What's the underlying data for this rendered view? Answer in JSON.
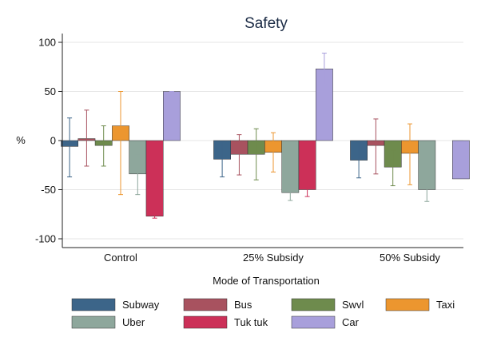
{
  "chart_data": {
    "type": "bar",
    "title": "Safety",
    "xlabel": "Mode of Transportation",
    "ylabel": "%",
    "ylim": [
      -110,
      105
    ],
    "yticks": [
      -100,
      -50,
      0,
      50,
      100
    ],
    "ytick_labels": [
      "-100",
      "-50",
      "0",
      "50",
      "100"
    ],
    "grid": true,
    "legend_position": "bottom",
    "categories": [
      "Control",
      "25% Subsidy",
      "50% Subsidy"
    ],
    "series": [
      {
        "name": "Subway",
        "color": "#3c6589",
        "values": [
          -6,
          -19,
          -20
        ],
        "ci_low": [
          -37,
          -37,
          -38
        ],
        "ci_high": [
          23,
          -1,
          -2
        ]
      },
      {
        "name": "Bus",
        "color": "#a8525f",
        "values": [
          2,
          -14,
          -5
        ],
        "ci_low": [
          -26,
          -35,
          -34
        ],
        "ci_high": [
          31,
          6,
          22
        ]
      },
      {
        "name": "Swvl",
        "color": "#6e8b4d",
        "values": [
          -5,
          -14,
          -27
        ],
        "ci_low": [
          -26,
          -40,
          -46
        ],
        "ci_high": [
          15,
          12,
          -10
        ]
      },
      {
        "name": "Taxi",
        "color": "#ec962f",
        "values": [
          15,
          -12,
          -13
        ],
        "ci_low": [
          -55,
          -32,
          -45
        ],
        "ci_high": [
          50,
          8,
          17
        ]
      },
      {
        "name": "Uber",
        "color": "#8ea79c",
        "values": [
          -34,
          -53,
          -50
        ],
        "ci_low": [
          -55,
          -61,
          -62
        ],
        "ci_high": [
          -14,
          -45,
          -37
        ]
      },
      {
        "name": "Tuk tuk",
        "color": "#cc3058",
        "values": [
          -77,
          -50,
          null
        ],
        "ci_low": [
          -79,
          -57,
          null
        ],
        "ci_high": [
          -75,
          -42,
          null
        ]
      },
      {
        "name": "Car",
        "color": "#a89fdb",
        "values": [
          50,
          73,
          -39
        ],
        "ci_low": [
          49,
          57,
          null
        ],
        "ci_high": [
          50,
          89,
          null
        ]
      }
    ]
  }
}
